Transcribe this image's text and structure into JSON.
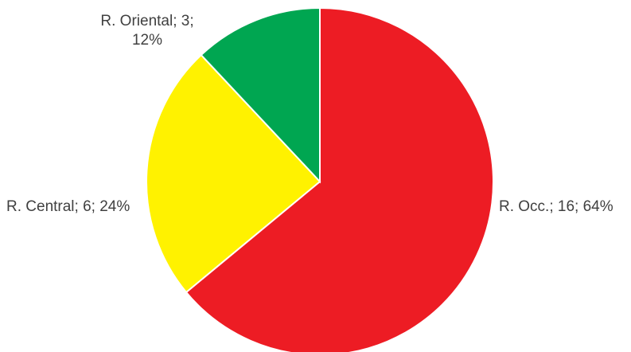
{
  "chart_data": {
    "type": "pie",
    "categories": [
      "R. Occ.",
      "R. Central",
      "R. Oriental"
    ],
    "values": [
      16,
      6,
      3
    ],
    "percentages": [
      64,
      24,
      12
    ],
    "colors": [
      "#ed1c24",
      "#fff200",
      "#00a651"
    ],
    "labels": {
      "r_occ": "R. Occ.; 16; 64%",
      "r_central": "R. Central; 6; 24%",
      "r_oriental_line1": "R. Oriental; 3;",
      "r_oriental_line2": "12%"
    },
    "start_angle": "12 o'clock",
    "direction": "clockwise"
  }
}
